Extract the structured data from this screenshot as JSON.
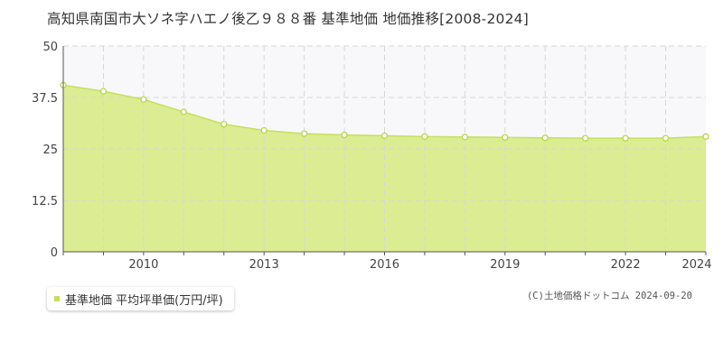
{
  "chart_data": {
    "type": "area",
    "title": "高知県南国市大ソネ字ハエノ後乙９８８番 基準地価 地価推移[2008-2024]",
    "xlabel": "",
    "ylabel": "",
    "x": [
      2008,
      2009,
      2010,
      2011,
      2012,
      2013,
      2014,
      2015,
      2016,
      2017,
      2018,
      2019,
      2020,
      2021,
      2022,
      2023,
      2024
    ],
    "series": [
      {
        "name": "基準地価 平均坪単価(万円/坪)",
        "values": [
          40.5,
          39.0,
          37.0,
          34.0,
          31.0,
          29.5,
          28.7,
          28.4,
          28.2,
          28.0,
          27.9,
          27.8,
          27.7,
          27.6,
          27.6,
          27.6,
          28.0
        ]
      }
    ],
    "xlim": [
      2008,
      2024
    ],
    "ylim": [
      0,
      50
    ],
    "yticks": [
      "0",
      "12.5",
      "25",
      "37.5",
      "50"
    ],
    "xticks": [
      "2010",
      "2013",
      "2016",
      "2019",
      "2022",
      "2024"
    ],
    "xtick_values": [
      2010,
      2013,
      2016,
      2019,
      2022,
      2024
    ],
    "ytick_values": [
      0,
      12.5,
      25,
      37.5,
      50
    ],
    "grid": true,
    "legend": "bottom-left",
    "colors": {
      "fill": "#dcec92",
      "line": "#c6df5e",
      "marker_fill": "#ffffff",
      "marker_stroke": "#b8d44a",
      "plot_bg": "#f8f8fa",
      "grid": "#d6d6d6"
    }
  },
  "legend_label": "基準地価 平均坪単価(万円/坪)",
  "credit": "(C)土地価格ドットコム 2024-09-20"
}
